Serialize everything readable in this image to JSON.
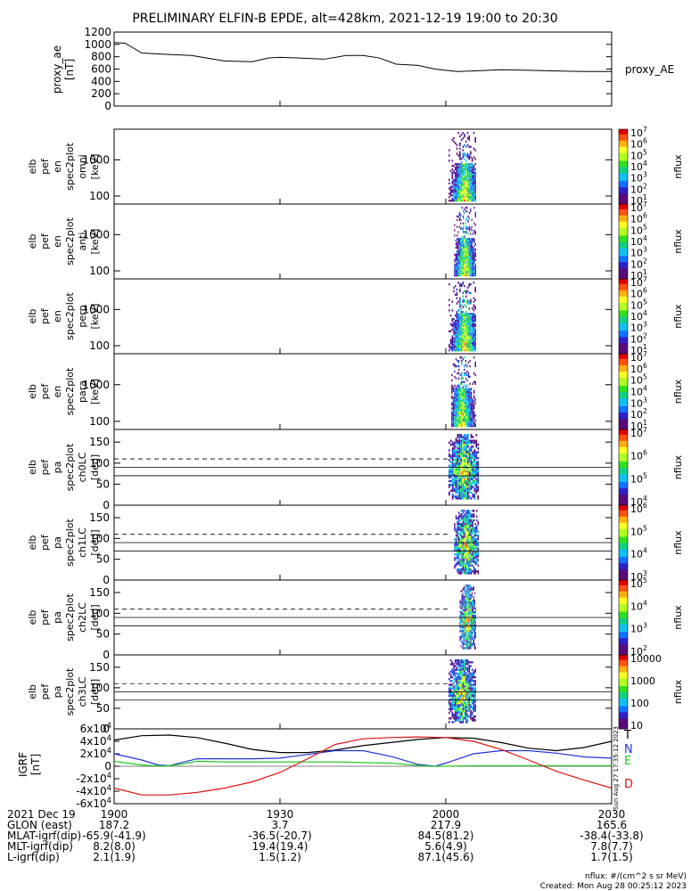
{
  "title": "PRELIMINARY ELFIN-B EPDE, alt=428km, 2021-12-19 19:00 to 20:30",
  "bottom_right": {
    "nflux_units": "nflux: #/(cm^2 s sr MeV)",
    "created": "Created: Mon Aug 28 00:25:12 2023"
  },
  "side_stamp": "Sun Aug 27 17:35:12 2023",
  "colors": {
    "bar_yellow": "#ffdd22",
    "bar_black": "#000000",
    "bar_red": "#ee1111",
    "trace": "#000000",
    "T": "#000000",
    "N": "#2233dd",
    "E": "#22cc22",
    "D": "#dd1111"
  },
  "orbit_bar": [
    {
      "from": 1900,
      "to": 1935,
      "color": "yellow"
    },
    {
      "from": 1935,
      "to": 2001,
      "color": "black"
    },
    {
      "from": 2001,
      "to": 2030,
      "color": "yellow"
    }
  ],
  "science_zone": {
    "from": 2003,
    "to": 2010
  },
  "time_axis": {
    "labels": [
      "1900",
      "1930",
      "2000",
      "2030"
    ],
    "minutes": [
      0,
      30,
      60,
      90
    ],
    "range_minutes": [
      0,
      90
    ]
  },
  "footer": {
    "rows": [
      {
        "label": "2021 Dec 19",
        "values": [
          "1900",
          "1930",
          "2000",
          "2030"
        ]
      },
      {
        "label": "GLON (east)",
        "values": [
          "187.2",
          "3.7",
          "217.9",
          "165.6"
        ]
      },
      {
        "label": "MLAT-igrf(dip)",
        "values": [
          "-65.9(-41.9)",
          "-36.5(-20.7)",
          "84.5(81.2)",
          "-38.4(-33.8)"
        ]
      },
      {
        "label": "MLT-igrf(dip)",
        "values": [
          "8.2(8.0)",
          "19.4(19.4)",
          "5.6(4.9)",
          "7.8(7.7)"
        ]
      },
      {
        "label": "L-igrf(dip)",
        "values": [
          "2.1(1.9)",
          "1.5(1.2)",
          "87.1(45.6)",
          "1.7(1.5)"
        ]
      }
    ]
  },
  "chart_data": [
    {
      "type": "line",
      "title": "proxy_AE",
      "ylabel": [
        "proxy_ae",
        "[nT]"
      ],
      "ylim": [
        0,
        1200
      ],
      "yticks": [
        "0",
        "200",
        "400",
        "600",
        "800",
        "1000",
        "1200"
      ],
      "series": [
        {
          "name": "proxy_AE",
          "x": [
            0,
            2,
            5,
            9,
            14,
            20,
            25,
            28,
            30,
            33,
            38,
            42,
            45,
            48,
            51,
            55,
            58,
            62,
            65,
            70,
            75,
            80,
            85,
            90
          ],
          "values": [
            1030,
            1020,
            860,
            840,
            820,
            730,
            720,
            780,
            790,
            780,
            760,
            820,
            820,
            780,
            680,
            660,
            600,
            560,
            570,
            590,
            580,
            570,
            560,
            560
          ]
        }
      ]
    },
    {
      "type": "heatmap",
      "panel": "en-omni",
      "ylabel": [
        "elb",
        "pef",
        "en",
        "spec2plot",
        "omni",
        "[keV]"
      ],
      "yticks": [
        "100",
        "1000"
      ],
      "colorbar": {
        "label": "nflux",
        "ticks": [
          "10^1",
          "10^2",
          "10^3",
          "10^4",
          "10^5",
          "10^6",
          "10^7"
        ]
      },
      "active_window_minutes": [
        60.5,
        65.5
      ],
      "peak_minute": 63.5
    },
    {
      "type": "heatmap",
      "panel": "en-anti",
      "ylabel": [
        "elb",
        "pef",
        "en",
        "spec2plot",
        "anti",
        "[keV]"
      ],
      "yticks": [
        "100",
        "1000"
      ],
      "colorbar": {
        "label": "nflux",
        "ticks": [
          "10^1",
          "10^2",
          "10^3",
          "10^4",
          "10^5",
          "10^6",
          "10^7"
        ]
      },
      "active_window_minutes": [
        61.5,
        65.5
      ],
      "peak_minute": 63.5
    },
    {
      "type": "heatmap",
      "panel": "en-perp",
      "ylabel": [
        "elb",
        "pef",
        "en",
        "spec2plot",
        "perp",
        "[keV]"
      ],
      "yticks": [
        "100",
        "1000"
      ],
      "colorbar": {
        "label": "nflux",
        "ticks": [
          "10^1",
          "10^2",
          "10^3",
          "10^4",
          "10^5",
          "10^6",
          "10^7"
        ]
      },
      "active_window_minutes": [
        60.5,
        65.5
      ],
      "peak_minute": 63.5
    },
    {
      "type": "heatmap",
      "panel": "en-para",
      "ylabel": [
        "elb",
        "pef",
        "en",
        "spec2plot",
        "para",
        "[keV]"
      ],
      "yticks": [
        "100",
        "1000"
      ],
      "colorbar": {
        "label": "nflux",
        "ticks": [
          "10^1",
          "10^2",
          "10^3",
          "10^4",
          "10^5",
          "10^6",
          "10^7"
        ]
      },
      "active_window_minutes": [
        61,
        65.5
      ],
      "peak_minute": 63
    },
    {
      "type": "heatmap",
      "panel": "pa-ch0LC",
      "ylabel": [
        "elb",
        "pef",
        "pa",
        "spec2plot",
        "ch0LC",
        "[deg]"
      ],
      "ylim": [
        0,
        180
      ],
      "yticks": [
        "0",
        "50",
        "100",
        "150"
      ],
      "reference_lines_deg": {
        "solid": [
          70,
          90
        ],
        "dashed": [
          110
        ]
      },
      "colorbar": {
        "label": "nflux",
        "ticks": [
          "10^4",
          "10^5",
          "10^6",
          "10^7"
        ]
      },
      "active_window_minutes": [
        60.5,
        66
      ]
    },
    {
      "type": "heatmap",
      "panel": "pa-ch1LC",
      "ylabel": [
        "elb",
        "pef",
        "pa",
        "spec2plot",
        "ch1LC",
        "[deg]"
      ],
      "ylim": [
        0,
        180
      ],
      "yticks": [
        "0",
        "50",
        "100",
        "150"
      ],
      "reference_lines_deg": {
        "solid": [
          70,
          90
        ],
        "dashed": [
          110
        ]
      },
      "colorbar": {
        "label": "nflux",
        "ticks": [
          "10^3",
          "10^4",
          "10^5",
          "10^6"
        ]
      },
      "active_window_minutes": [
        61.5,
        66
      ]
    },
    {
      "type": "heatmap",
      "panel": "pa-ch2LC",
      "ylabel": [
        "elb",
        "pef",
        "pa",
        "spec2plot",
        "ch2LC",
        "[deg]"
      ],
      "ylim": [
        0,
        180
      ],
      "yticks": [
        "0",
        "50",
        "100",
        "150"
      ],
      "reference_lines_deg": {
        "solid": [
          70,
          90
        ],
        "dashed": [
          110
        ]
      },
      "colorbar": {
        "label": "nflux",
        "ticks": [
          "10^2",
          "10^3",
          "10^4",
          "10^5"
        ]
      },
      "active_window_minutes": [
        62.5,
        65.5
      ]
    },
    {
      "type": "heatmap",
      "panel": "pa-ch3LC",
      "ylabel": [
        "elb",
        "pef",
        "pa",
        "spec2plot",
        "ch3LC",
        "[deg]"
      ],
      "ylim": [
        0,
        180
      ],
      "yticks": [
        "0",
        "50",
        "100",
        "150"
      ],
      "reference_lines_deg": {
        "solid": [
          70,
          90
        ],
        "dashed": [
          110
        ]
      },
      "colorbar": {
        "label": "nflux",
        "ticks": [
          "10",
          "100",
          "1000",
          "10000"
        ]
      },
      "active_window_minutes": [
        60.5,
        65.5
      ]
    },
    {
      "type": "line",
      "panel": "IGRF",
      "ylabel": [
        "IGRF",
        "[nT]"
      ],
      "ylim": [
        -60000,
        60000
      ],
      "yticks": [
        "-6x10^4",
        "-4x10^4",
        "-2x10^4",
        "0",
        "2x10^4",
        "4x10^4",
        "6x10^4"
      ],
      "grid": false,
      "series": [
        {
          "name": "T",
          "x": [
            0,
            5,
            10,
            15,
            20,
            25,
            30,
            35,
            40,
            45,
            50,
            55,
            60,
            65,
            70,
            75,
            80,
            85,
            90
          ],
          "values": [
            42000,
            49000,
            50000,
            46000,
            37000,
            27000,
            22000,
            22000,
            26000,
            33000,
            38000,
            43000,
            46000,
            45000,
            38000,
            29000,
            25000,
            30000,
            40000
          ]
        },
        {
          "name": "N",
          "x": [
            0,
            5,
            8,
            10,
            15,
            20,
            25,
            30,
            35,
            40,
            45,
            50,
            55,
            58,
            60,
            65,
            70,
            75,
            80,
            85,
            90
          ],
          "values": [
            20000,
            10000,
            2000,
            1000,
            12000,
            12000,
            12000,
            13000,
            19000,
            25000,
            25000,
            16000,
            3000,
            0,
            5000,
            20000,
            25000,
            25000,
            21000,
            15000,
            13000
          ]
        },
        {
          "name": "E",
          "x": [
            0,
            5,
            9,
            12,
            15,
            20,
            30,
            40,
            50,
            57,
            60,
            65,
            70,
            80,
            90
          ],
          "values": [
            8000,
            2000,
            0,
            3000,
            8000,
            7000,
            7000,
            7000,
            5000,
            0,
            0,
            1000,
            1000,
            1000,
            1000
          ]
        },
        {
          "name": "D",
          "x": [
            0,
            5,
            10,
            15,
            20,
            25,
            30,
            35,
            40,
            45,
            50,
            55,
            60,
            65,
            70,
            75,
            80,
            85,
            90
          ],
          "values": [
            -35000,
            -46000,
            -46000,
            -42000,
            -35000,
            -25000,
            -10000,
            12000,
            35000,
            44000,
            46000,
            47000,
            46000,
            40000,
            27000,
            10000,
            -8000,
            -22000,
            -35000
          ]
        }
      ]
    }
  ]
}
